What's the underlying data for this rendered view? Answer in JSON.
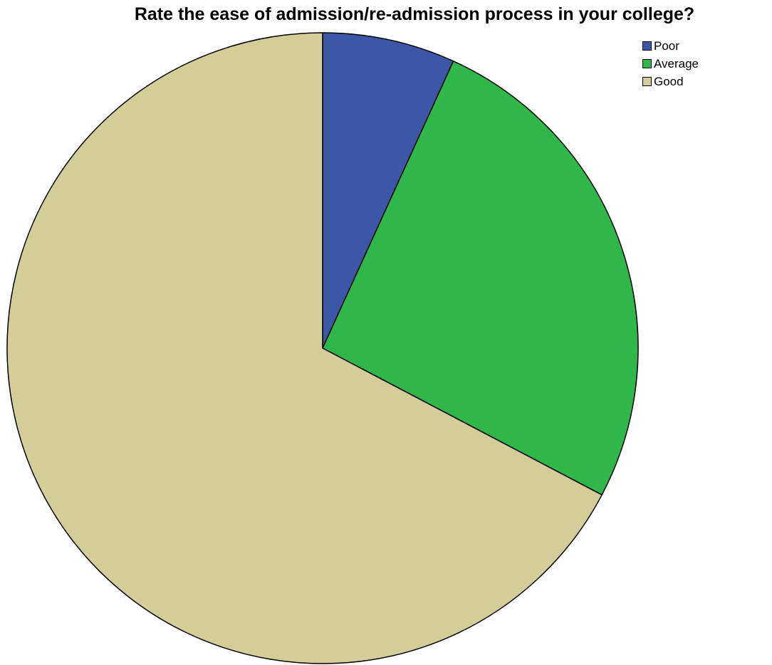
{
  "chart_data": {
    "type": "pie",
    "title": "Rate the ease of admission/re-admission process in your college?",
    "legend_position": "top-right",
    "start_angle": "12 o'clock",
    "direction": "clockwise",
    "slices": [
      {
        "label": "Poor",
        "value": 6.8,
        "color": "#3d57a8"
      },
      {
        "label": "Average",
        "value": 25.9,
        "color": "#2fb849"
      },
      {
        "label": "Good",
        "value": 67.3,
        "color": "#d3cd98"
      }
    ]
  }
}
